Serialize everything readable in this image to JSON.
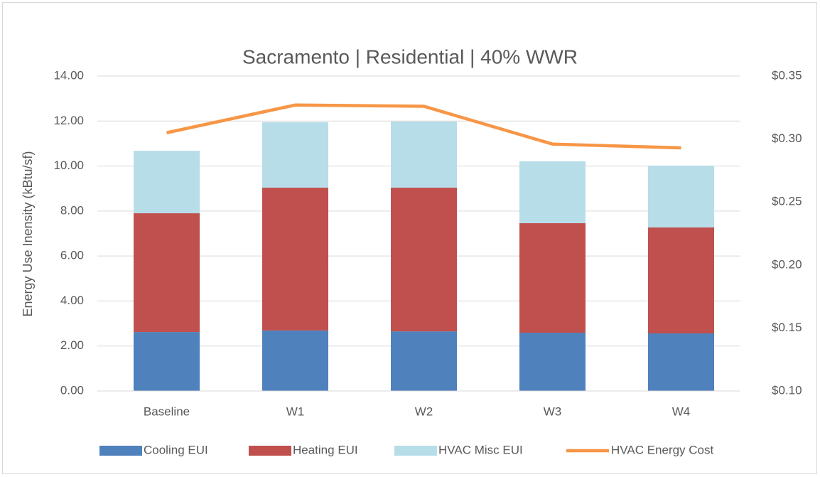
{
  "chart_data": {
    "type": "bar",
    "stacked": true,
    "title": "Sacramento  |  Residential  | 40% WWR",
    "y_label": "Energy Use Inensity (kBtu/sf)",
    "categories": [
      "Baseline",
      "W1",
      "W2",
      "W3",
      "W4"
    ],
    "series": [
      {
        "name": "Cooling EUI",
        "color": "#4f81bd",
        "values": [
          2.62,
          2.69,
          2.65,
          2.59,
          2.56
        ]
      },
      {
        "name": "Heating EUI",
        "color": "#c0504d",
        "values": [
          5.28,
          6.35,
          6.39,
          4.87,
          4.71
        ]
      },
      {
        "name": "HVAC Misc EUI",
        "color": "#b7dde8",
        "values": [
          2.78,
          2.91,
          2.94,
          2.75,
          2.75
        ]
      },
      {
        "name": "HVAC Energy Cost",
        "color": "#f79646",
        "type": "line",
        "axis": "y2",
        "values": [
          0.305,
          0.327,
          0.326,
          0.296,
          0.293
        ]
      }
    ],
    "ylim": [
      0,
      14
    ],
    "yticks": [
      {
        "value": 0,
        "label": "0.00"
      },
      {
        "value": 2,
        "label": "2.00"
      },
      {
        "value": 4,
        "label": "4.00"
      },
      {
        "value": 6,
        "label": "6.00"
      },
      {
        "value": 8,
        "label": "8.00"
      },
      {
        "value": 10,
        "label": "10.00"
      },
      {
        "value": 12,
        "label": "12.00"
      },
      {
        "value": 14,
        "label": "14.00"
      }
    ],
    "y2lim": [
      0.1,
      0.35
    ],
    "y2ticks": [
      {
        "value": 0.1,
        "label": "$0.10"
      },
      {
        "value": 0.15,
        "label": "$0.15"
      },
      {
        "value": 0.2,
        "label": "$0.20"
      },
      {
        "value": 0.25,
        "label": "$0.25"
      },
      {
        "value": 0.3,
        "label": "$0.30"
      },
      {
        "value": 0.35,
        "label": "$0.35"
      }
    ],
    "grid": true,
    "legend": "bottom"
  }
}
